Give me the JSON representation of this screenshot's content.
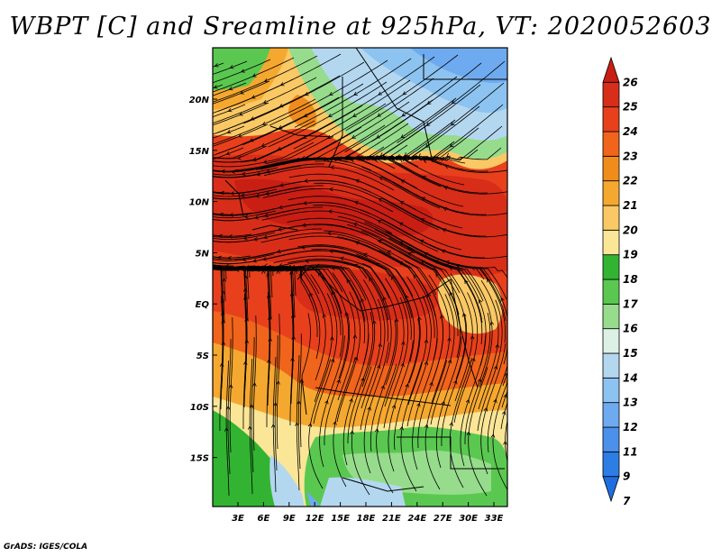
{
  "title": "WBPT [C] and Sreamline at 925hPa, VT: 2020052603",
  "footer": "GrADS: IGES/COLA",
  "lat_ticks": [
    "20N",
    "15N",
    "10N",
    "5N",
    "EQ",
    "5S",
    "10S",
    "15S"
  ],
  "lon_ticks": [
    "3E",
    "6E",
    "9E",
    "12E",
    "15E",
    "18E",
    "21E",
    "24E",
    "27E",
    "30E",
    "33E"
  ],
  "colorbar": {
    "labels": [
      "26",
      "25",
      "24",
      "23",
      "22",
      "21",
      "20",
      "19",
      "18",
      "17",
      "16",
      "15",
      "14",
      "13",
      "12",
      "11",
      "9",
      "7"
    ],
    "colors": [
      "#c81e14",
      "#d82d18",
      "#e8401c",
      "#f0641c",
      "#f08c1c",
      "#f5a830",
      "#fac864",
      "#fae696",
      "#32b432",
      "#5ac850",
      "#96dc8c",
      "#dcf0e6",
      "#b4d7f0",
      "#8cc3f0",
      "#6eaaf0",
      "#4b91eb",
      "#2d7de6",
      "#1e6ee1"
    ]
  }
}
